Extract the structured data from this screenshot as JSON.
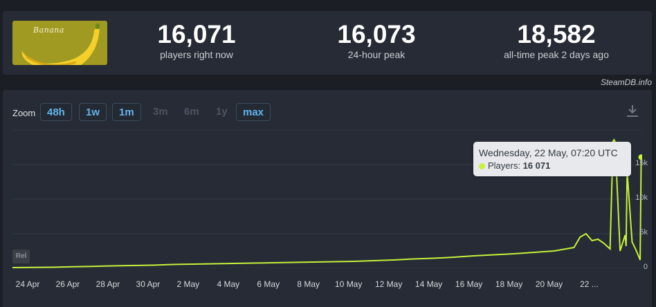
{
  "stats": {
    "logo_text": "Banana",
    "players_now": "16,071",
    "players_now_label": "players right now",
    "peak_24h": "16,073",
    "peak_24h_label": "24-hour peak",
    "peak_all": "18,582",
    "peak_all_label": "all-time peak 2 days ago"
  },
  "watermark": "SteamDB.info",
  "zoom": {
    "label": "Zoom",
    "buttons": [
      {
        "label": "48h",
        "enabled": true
      },
      {
        "label": "1w",
        "enabled": true
      },
      {
        "label": "1m",
        "enabled": true
      },
      {
        "label": "3m",
        "enabled": false
      },
      {
        "label": "6m",
        "enabled": false
      },
      {
        "label": "1y",
        "enabled": false
      },
      {
        "label": "max",
        "enabled": true
      }
    ]
  },
  "rel_label": "Rel",
  "tooltip": {
    "date": "Wednesday, 22 May, 07:20 UTC",
    "series_label": "Players:",
    "value": "16 071"
  },
  "chart_data": {
    "type": "line",
    "series": [
      {
        "name": "Players",
        "color": "#c6f23a"
      }
    ],
    "y_ticks": [
      "0",
      "5k",
      "10k",
      "15k"
    ],
    "ylim": [
      0,
      20000
    ],
    "x_labels": [
      "24 Apr",
      "26 Apr",
      "28 Apr",
      "30 Apr",
      "2 May",
      "4 May",
      "6 May",
      "8 May",
      "10 May",
      "12 May",
      "14 May",
      "16 May",
      "18 May",
      "20 May",
      "22 ..."
    ],
    "x": [
      0,
      1,
      2,
      3,
      4,
      5,
      6,
      7,
      8,
      9,
      10,
      11,
      12,
      13,
      14,
      15,
      16,
      17,
      18,
      19,
      20,
      21,
      22,
      23,
      24,
      25,
      26,
      27,
      28,
      28.3,
      28.6,
      28.9,
      29.2,
      29.5,
      29.8,
      29.95,
      30.0,
      30.05,
      30.3,
      30.55,
      30.6,
      30.65,
      30.9,
      31.1,
      31.3,
      31.35
    ],
    "y": [
      100,
      120,
      150,
      220,
      280,
      350,
      400,
      450,
      550,
      600,
      650,
      700,
      750,
      800,
      850,
      900,
      950,
      1000,
      1100,
      1200,
      1350,
      1450,
      1600,
      1800,
      1950,
      2100,
      2300,
      2500,
      3000,
      4500,
      5000,
      4000,
      4200,
      3600,
      2800,
      18400,
      18582,
      18300,
      2500,
      4800,
      3200,
      14000,
      3800,
      2600,
      1200,
      16071
    ]
  }
}
